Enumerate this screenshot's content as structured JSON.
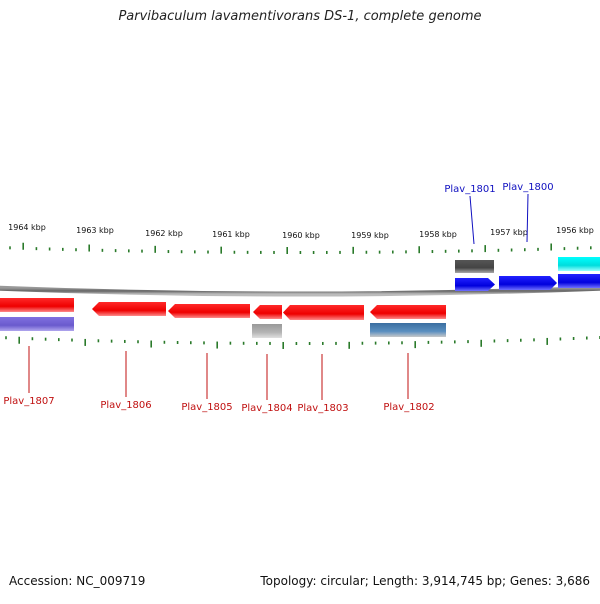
{
  "title": "Parvibaculum lavamentivorans DS-1, complete genome",
  "footer": {
    "accession": "Accession: NC_009719",
    "summary": "Topology: circular; Length: 3,914,745 bp; Genes: 3,686"
  },
  "colors": {
    "forward_gene": "#1a1aee",
    "forward_gene_light": "#00e5ee",
    "reverse_gene": "#ee1111",
    "reverse_gene_alt": "#7b68d6",
    "feature_gray": "#666666",
    "feature_lightgray": "#b0b0b0",
    "feature_steelblue": "#4a7fb0",
    "tick": "#2a7a2a",
    "backbone": "#888888",
    "label_forward": "#1010c0",
    "label_reverse": "#c01010"
  },
  "scale_labels": [
    "1964 kbp",
    "1963 kbp",
    "1962 kbp",
    "1961 kbp",
    "1960 kbp",
    "1959 kbp",
    "1958 kbp",
    "1957 kbp",
    "1956 kbp"
  ],
  "top_genes": [
    {
      "label": "Plav_1801"
    },
    {
      "label": "Plav_1800"
    }
  ],
  "bottom_genes": [
    {
      "label": "Plav_1807"
    },
    {
      "label": "Plav_1806"
    },
    {
      "label": "Plav_1805"
    },
    {
      "label": "Plav_1804"
    },
    {
      "label": "Plav_1803"
    },
    {
      "label": "Plav_1802"
    }
  ]
}
